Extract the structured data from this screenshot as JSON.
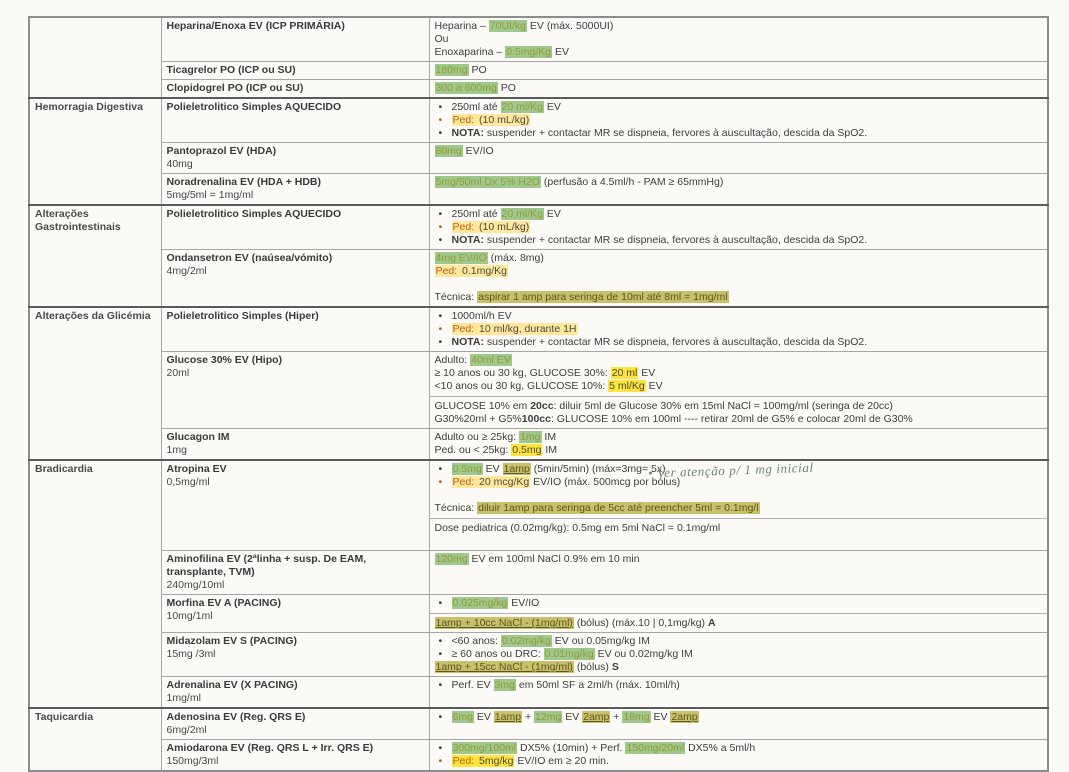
{
  "document": {
    "kind": "scanned emergency drug protocol table",
    "language": "pt",
    "colors": {
      "highlight_green": "#9dc98f",
      "highlight_yellow_pale": "#ffe89c",
      "highlight_yellow_bright": "#ffe43d",
      "highlight_olive": "#c8c06a",
      "ped_orange": "#c05c12",
      "handwriting_ink": "#6b8577"
    }
  },
  "table": {
    "sections": [
      {
        "label": "",
        "rows": [
          {
            "title": "Heparina/Enoxa EV (ICP PRIMÁRIA)",
            "sub": "",
            "content": [
              {
                "runs": [
                  {
                    "t": "Heparina – "
                  },
                  {
                    "t": "70UI/kg",
                    "h": "green"
                  },
                  {
                    "t": " EV (máx. 5000UI)"
                  }
                ]
              },
              {
                "runs": [
                  {
                    "t": "Ou"
                  }
                ]
              },
              {
                "runs": [
                  {
                    "t": "Enoxaparina – "
                  },
                  {
                    "t": "0.5mg/Kg",
                    "h": "green"
                  },
                  {
                    "t": " EV"
                  }
                ]
              }
            ]
          },
          {
            "title": "Ticagrelor PO (ICP ou SU)",
            "sub": "",
            "content": [
              {
                "runs": [
                  {
                    "t": "180mg",
                    "h": "green"
                  },
                  {
                    "t": " PO"
                  }
                ]
              }
            ]
          },
          {
            "title": "Clopidogrel PO (ICP ou SU)",
            "sub": "",
            "content": [
              {
                "runs": [
                  {
                    "t": "300 a 600mg",
                    "h": "green"
                  },
                  {
                    "t": " PO"
                  }
                ]
              }
            ]
          }
        ]
      },
      {
        "label": "Hemorragia Digestiva",
        "rows": [
          {
            "title": "Polieletrolitico Simples AQUECIDO",
            "sub": "",
            "content": [
              {
                "bullet": true,
                "runs": [
                  {
                    "t": "250ml até "
                  },
                  {
                    "t": "20 ml/Kg",
                    "h": "green"
                  },
                  {
                    "t": " EV"
                  }
                ]
              },
              {
                "bullet": true,
                "bc": "orange",
                "runs": [
                  {
                    "t": "Ped:",
                    "h": "yellow",
                    "c": "orange"
                  },
                  {
                    "t": " (10 mL/kg)",
                    "h": "yellow"
                  }
                ]
              },
              {
                "bullet": true,
                "runs": [
                  {
                    "t": "NOTA:",
                    "b": 1
                  },
                  {
                    "t": " suspender + contactar MR se dispneia, fervores à auscultação, descida da SpO2."
                  }
                ]
              }
            ]
          },
          {
            "title": "Pantoprazol EV (HDA)",
            "sub": "40mg",
            "content": [
              {
                "runs": [
                  {
                    "t": "80mg",
                    "h": "green"
                  },
                  {
                    "t": " EV/IO"
                  }
                ]
              }
            ]
          },
          {
            "title": "Noradrenalina EV (HDA + HDB)",
            "sub": "5mg/5ml = 1mg/ml",
            "content": [
              {
                "runs": [
                  {
                    "t": "5mg/50ml Dx 5% H2O",
                    "h": "green"
                  },
                  {
                    "t": " (perfusão a 4.5ml/h - PAM ≥ 65mmHg)"
                  }
                ]
              }
            ]
          }
        ]
      },
      {
        "label": "Alterações Gastrointestinais",
        "rows": [
          {
            "title": "Polieletrolitico Simples AQUECIDO",
            "sub": "",
            "content": [
              {
                "bullet": true,
                "runs": [
                  {
                    "t": "250ml até "
                  },
                  {
                    "t": "20 ml/Kg",
                    "h": "green"
                  },
                  {
                    "t": " EV"
                  }
                ]
              },
              {
                "bullet": true,
                "bc": "orange",
                "runs": [
                  {
                    "t": "Ped:",
                    "h": "yellow",
                    "c": "orange"
                  },
                  {
                    "t": " (10 mL/kg)",
                    "h": "yellow"
                  }
                ]
              },
              {
                "bullet": true,
                "runs": [
                  {
                    "t": "NOTA:",
                    "b": 1
                  },
                  {
                    "t": " suspender + contactar MR se dispneia, fervores à auscultação, descida da SpO2."
                  }
                ]
              }
            ]
          },
          {
            "title": "Ondansetron EV (naúsea/vómito)",
            "sub": "4mg/2ml",
            "content": [
              {
                "runs": [
                  {
                    "t": "4mg EV/IO",
                    "h": "green"
                  },
                  {
                    "t": " (máx. 8mg)"
                  }
                ]
              },
              {
                "runs": [
                  {
                    "t": "Ped:",
                    "h": "yellow",
                    "c": "orange"
                  },
                  {
                    "t": " 0.1mg/Kg",
                    "h": "yellow"
                  }
                ]
              },
              {
                "blank": 1
              },
              {
                "runs": [
                  {
                    "t": "Técnica: "
                  },
                  {
                    "t": "aspirar 1 amp para seringa de 10ml até 8ml = 1mg/ml",
                    "h": "olive"
                  }
                ]
              }
            ]
          }
        ]
      },
      {
        "label": "Alterações da Glicémia",
        "rows": [
          {
            "title": "Polieletrolitico Simples (Hiper)",
            "sub": "",
            "content": [
              {
                "bullet": true,
                "runs": [
                  {
                    "t": "1000ml/h EV"
                  }
                ]
              },
              {
                "bullet": true,
                "bc": "orange",
                "runs": [
                  {
                    "t": "Ped:",
                    "h": "yellow",
                    "c": "orange"
                  },
                  {
                    "t": " 10 ml/kg, durante 1H",
                    "h": "yellow"
                  }
                ]
              },
              {
                "bullet": true,
                "runs": [
                  {
                    "t": "NOTA:",
                    "b": 1
                  },
                  {
                    "t": " suspender + contactar MR se dispneia, fervores à auscultação, descida da SpO2."
                  }
                ]
              }
            ]
          },
          {
            "title": "Glucose 30% EV (Hipo)",
            "sub": "20ml",
            "content": [
              {
                "runs": [
                  {
                    "t": "Adulto: "
                  },
                  {
                    "t": "40ml EV",
                    "h": "green"
                  }
                ]
              },
              {
                "runs": [
                  {
                    "t": "≥ 10 anos ou 30 kg, GLUCOSE 30%: "
                  },
                  {
                    "t": "20 ml",
                    "h": "bright"
                  },
                  {
                    "t": " EV"
                  }
                ]
              },
              {
                "runs": [
                  {
                    "t": "<10 anos ou 30 kg, GLUCOSE 10%: "
                  },
                  {
                    "t": "5 ml/Kg",
                    "h": "bright"
                  },
                  {
                    "t": " EV"
                  }
                ]
              },
              {
                "sep": 1
              },
              {
                "runs": [
                  {
                    "t": "GLUCOSE 10% em "
                  },
                  {
                    "t": "20cc",
                    "b": 1
                  },
                  {
                    "t": ": diluir 5ml de Glucose 30% em 15ml NaCl = 100mg/ml (seringa de 20cc)"
                  }
                ]
              },
              {
                "runs": [
                  {
                    "t": "G30%20ml + G5%"
                  },
                  {
                    "t": "100cc",
                    "b": 1
                  },
                  {
                    "t": ": GLUCOSE 10% em 100ml ---- retirar 20ml de G5% e colocar 20ml de G30%"
                  }
                ]
              }
            ]
          },
          {
            "title": "Glucagon IM",
            "sub": "1mg",
            "content": [
              {
                "runs": [
                  {
                    "t": "Adulto ou ≥ 25kg: "
                  },
                  {
                    "t": "1mg",
                    "h": "green"
                  },
                  {
                    "t": " IM"
                  }
                ]
              },
              {
                "runs": [
                  {
                    "t": "Ped. ou < 25kg: "
                  },
                  {
                    "t": "0.5mg",
                    "h": "bright"
                  },
                  {
                    "t": " IM"
                  }
                ]
              }
            ]
          }
        ]
      },
      {
        "label": "Bradicardia",
        "rows": [
          {
            "title": "Atropina EV",
            "sub": "0,5mg/ml",
            "note": "• Ver atenção p/ 1 mg inicial",
            "content": [
              {
                "bullet": true,
                "runs": [
                  {
                    "t": "0.5mg",
                    "h": "green"
                  },
                  {
                    "t": " EV "
                  },
                  {
                    "t": "1amp",
                    "h": "olive",
                    "u": 1
                  },
                  {
                    "t": " (5min/5min) (máx=3mg= 5x)"
                  }
                ]
              },
              {
                "bullet": true,
                "bc": "orange",
                "runs": [
                  {
                    "t": "Ped:",
                    "h": "yellow",
                    "c": "orange"
                  },
                  {
                    "t": " 20 mcg/Kg",
                    "h": "yellow"
                  },
                  {
                    "t": " EV/IO (máx. 500mcg por bólus)"
                  }
                ]
              },
              {
                "blank": 1
              },
              {
                "runs": [
                  {
                    "t": "Técnica: "
                  },
                  {
                    "t": "diluir 1amp para seringa de 5cc até preencher 5ml = 0.1mg/l",
                    "h": "olive"
                  }
                ]
              },
              {
                "sep": 1
              },
              {
                "runs": [
                  {
                    "t": "Dose pediatrica (0.02mg/kg): 0.5mg em 5ml NaCl = 0.1mg/ml"
                  }
                ]
              },
              {
                "blank": 1
              }
            ]
          },
          {
            "title": "Aminofilina EV (2ªlinha + susp. De EAM, transplante, TVM)",
            "sub": "240mg/10ml",
            "content": [
              {
                "runs": [
                  {
                    "t": "120mg",
                    "h": "green"
                  },
                  {
                    "t": " EV em 100ml NaCl 0.9% em 10 min"
                  }
                ]
              }
            ]
          },
          {
            "title": "Morfina EV A (PACING)",
            "sub": "10mg/1ml",
            "content": [
              {
                "bullet": true,
                "runs": [
                  {
                    "t": "0.025mg/kg",
                    "h": "green"
                  },
                  {
                    "t": " EV/IO"
                  }
                ]
              },
              {
                "sep": 1
              },
              {
                "runs": [
                  {
                    "t": "1amp + 10cc NaCl - (1mg/ml)",
                    "h": "olive",
                    "u": 1
                  },
                  {
                    "t": " (bólus) (máx.10 | 0,1mg/kg) "
                  },
                  {
                    "t": "A",
                    "b": 1
                  }
                ]
              }
            ]
          },
          {
            "title": "Midazolam EV S (PACING)",
            "sub": "15mg /3ml",
            "content": [
              {
                "bullet": true,
                "runs": [
                  {
                    "t": "<60 anos: "
                  },
                  {
                    "t": "0.02mg/kg",
                    "h": "green"
                  },
                  {
                    "t": " EV ou 0.05mg/kg IM"
                  }
                ]
              },
              {
                "bullet": true,
                "runs": [
                  {
                    "t": "≥ 60 anos ou DRC: "
                  },
                  {
                    "t": "0.01mg/kg",
                    "h": "green"
                  },
                  {
                    "t": " EV ou 0.02mg/kg IM"
                  }
                ]
              },
              {
                "runs": [
                  {
                    "t": "1amp + 15cc NaCl - (1mg/ml)",
                    "h": "olive",
                    "u": 1
                  },
                  {
                    "t": " (bólus) "
                  },
                  {
                    "t": "S",
                    "b": 1
                  }
                ]
              }
            ]
          },
          {
            "title": "Adrenalina EV (X PACING)",
            "sub": "1mg/ml",
            "content": [
              {
                "bullet": true,
                "runs": [
                  {
                    "t": "Perf. EV "
                  },
                  {
                    "t": "3mg",
                    "h": "green"
                  },
                  {
                    "t": " em 50ml SF a 2ml/h (máx. 10ml/h)"
                  }
                ]
              }
            ]
          }
        ]
      },
      {
        "label": "Taquicardia",
        "rows": [
          {
            "title": "Adenosina EV (Reg. QRS E)",
            "sub": "6mg/2ml",
            "content": [
              {
                "bullet": true,
                "runs": [
                  {
                    "t": "6mg",
                    "h": "green"
                  },
                  {
                    "t": " EV "
                  },
                  {
                    "t": "1amp",
                    "h": "olive",
                    "u": 1
                  },
                  {
                    "t": " + "
                  },
                  {
                    "t": "12mg",
                    "h": "green"
                  },
                  {
                    "t": " EV "
                  },
                  {
                    "t": "2amp",
                    "h": "olive",
                    "u": 1
                  },
                  {
                    "t": " + "
                  },
                  {
                    "t": "18mg",
                    "h": "green"
                  },
                  {
                    "t": " EV "
                  },
                  {
                    "t": "2amp",
                    "h": "olive",
                    "u": 1
                  }
                ]
              }
            ]
          },
          {
            "title": "Amiodarona EV (Reg. QRS L + Irr. QRS E)",
            "sub": "150mg/3ml",
            "content": [
              {
                "bullet": true,
                "runs": [
                  {
                    "t": "300mg/100ml",
                    "h": "green"
                  },
                  {
                    "t": " DX5% (10min)  +  Perf. "
                  },
                  {
                    "t": "150mg/20ml",
                    "h": "green"
                  },
                  {
                    "t": " DX5% a 5ml/h"
                  }
                ]
              },
              {
                "bullet": true,
                "bc": "orange",
                "runs": [
                  {
                    "t": "Ped:",
                    "h": "bright",
                    "c": "orange"
                  },
                  {
                    "t": " 5mg/kg",
                    "h": "bright"
                  },
                  {
                    "t": " EV/IO em ≥ 20 min."
                  }
                ]
              }
            ]
          }
        ]
      }
    ]
  }
}
